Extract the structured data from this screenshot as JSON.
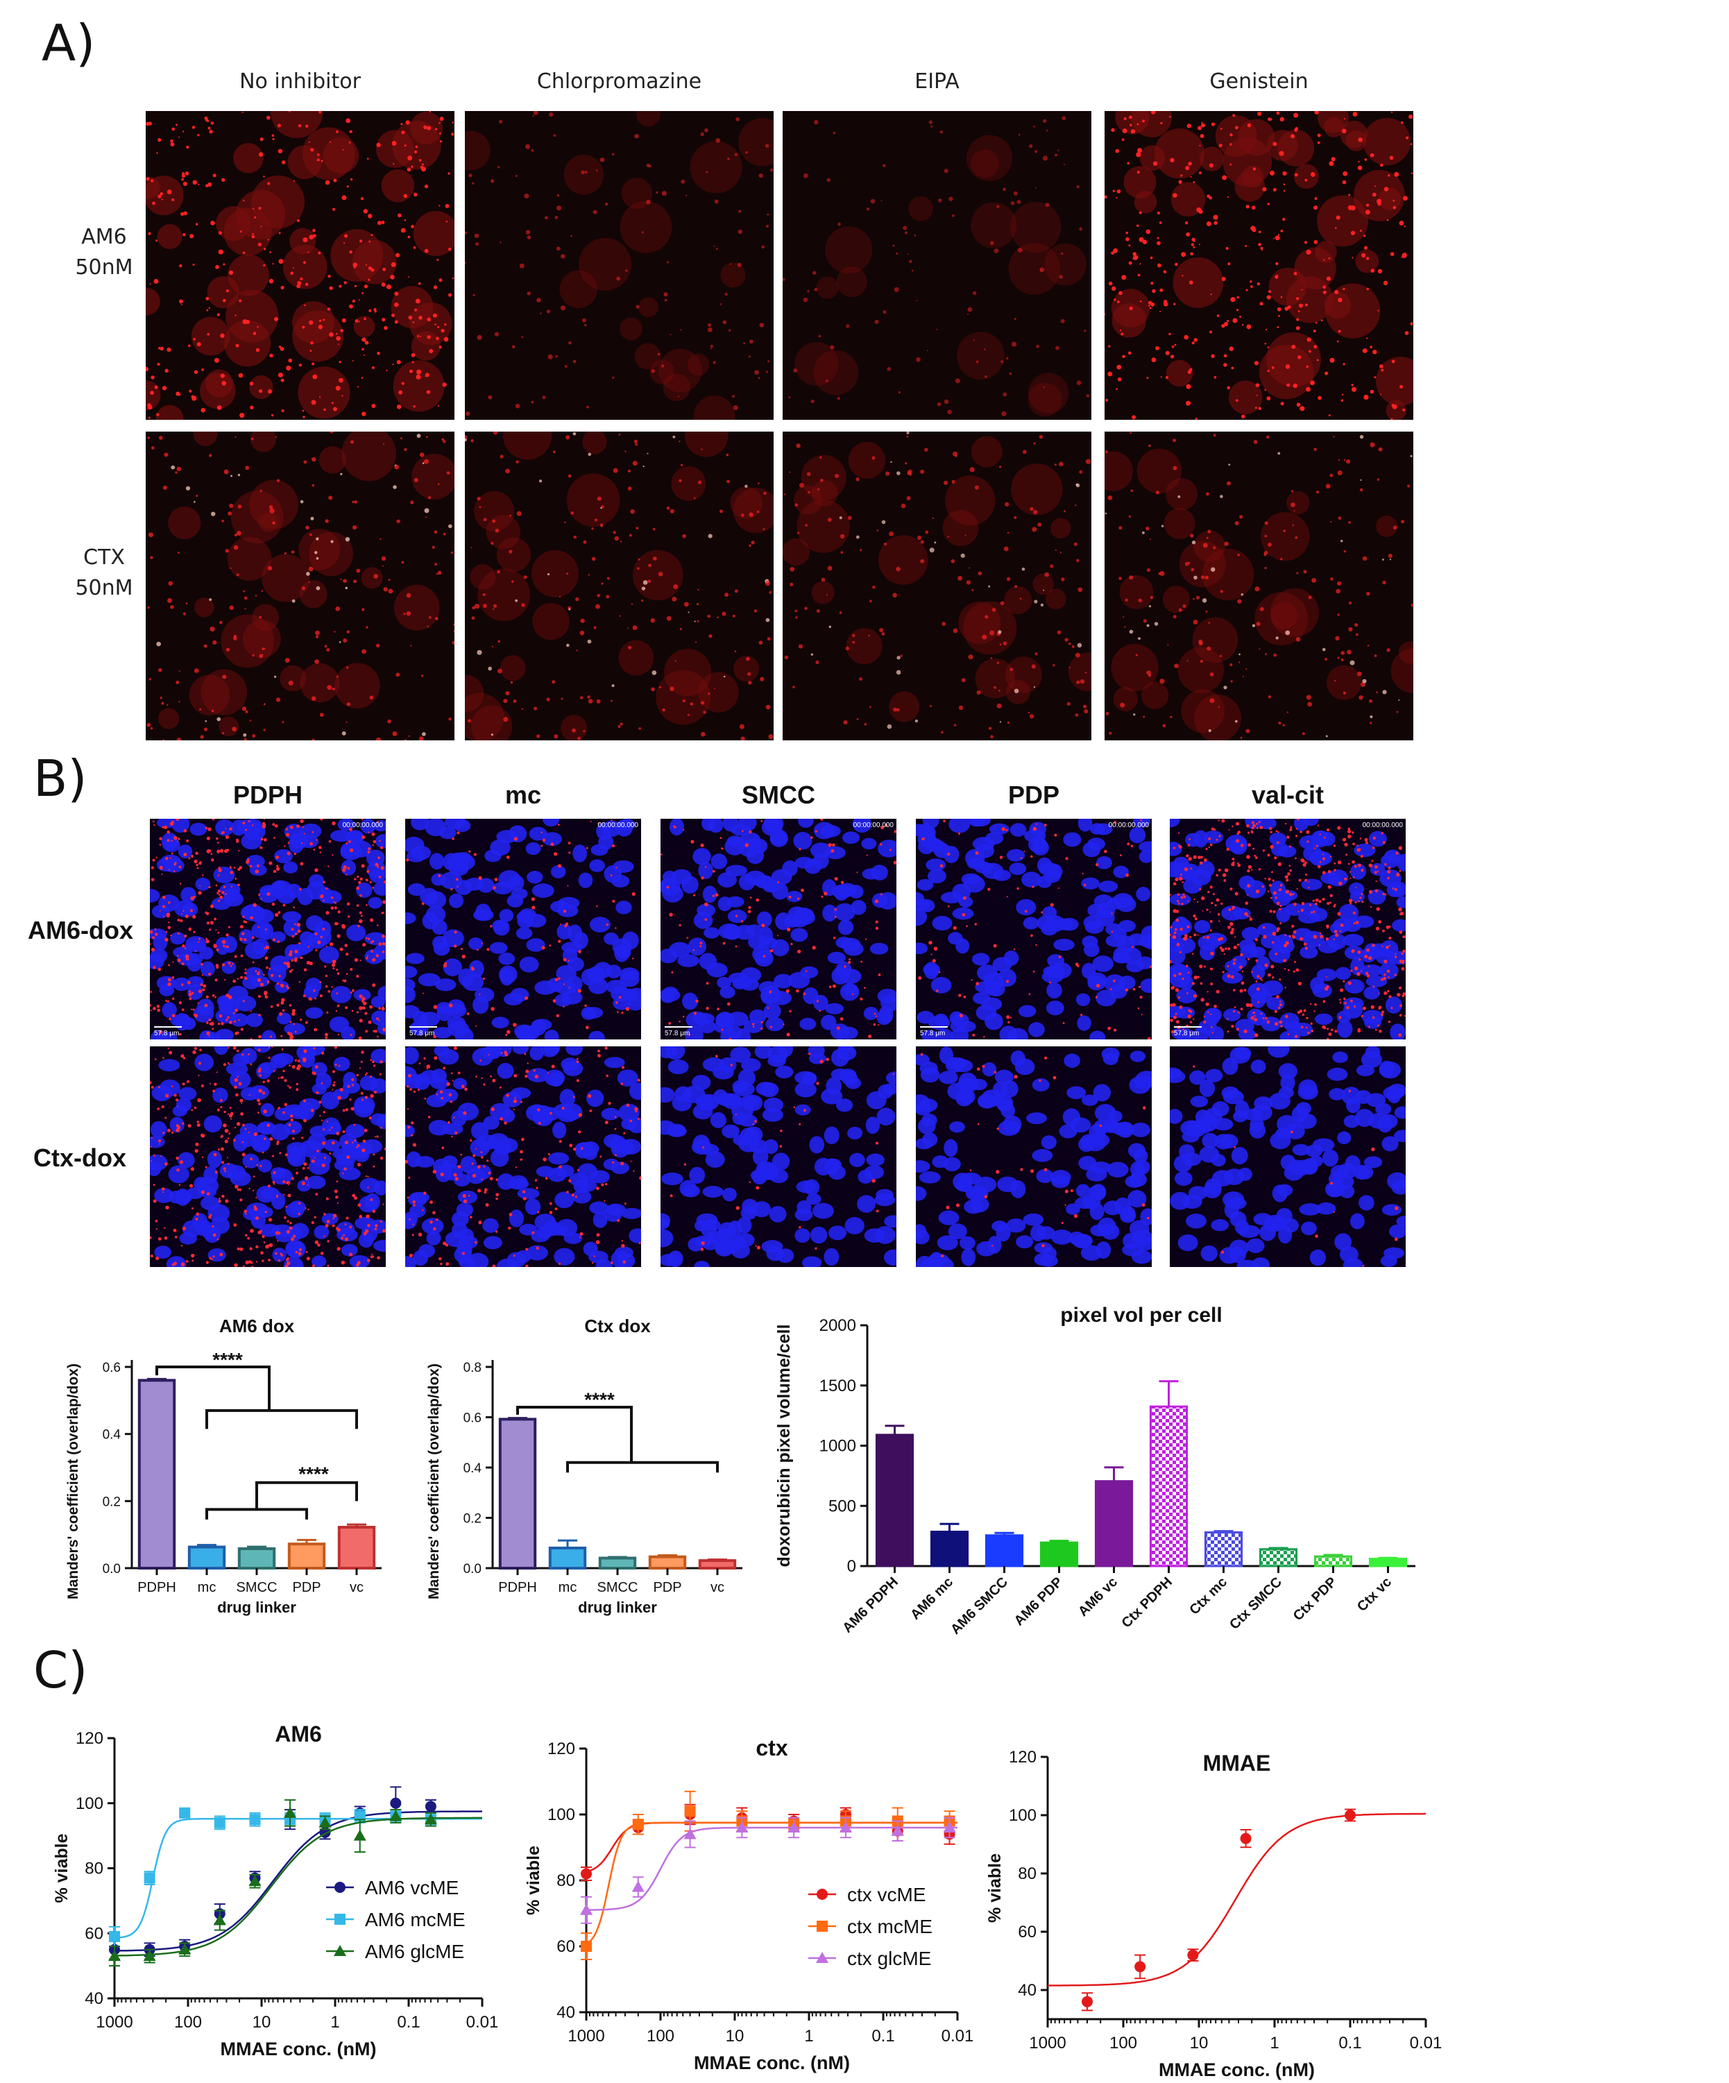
{
  "panels": {
    "a": "A)",
    "b": "B)",
    "c": "C)"
  },
  "panel_a": {
    "columns": [
      "No inhibitor",
      "Chlorpromazine",
      "EIPA",
      "Genistein"
    ],
    "rows": [
      {
        "line1": "AM6",
        "line2": "50nM"
      },
      {
        "line1": "CTX",
        "line2": "50nM"
      }
    ],
    "intensity": [
      [
        1.0,
        0.25,
        0.18,
        1.0
      ],
      [
        0.55,
        0.5,
        0.45,
        0.5
      ]
    ]
  },
  "panel_b": {
    "columns": [
      "PDPH",
      "mc",
      "SMCC",
      "PDP",
      "val-cit"
    ],
    "rows": [
      "AM6-dox",
      "Ctx-dox"
    ],
    "timestamp": "00:00:00.000",
    "scale_bar": "57.8 μm",
    "red_density": [
      [
        0.9,
        0.15,
        0.2,
        0.15,
        0.95
      ],
      [
        0.75,
        0.35,
        0.05,
        0.05,
        0.02
      ]
    ]
  },
  "chart_data": [
    {
      "type": "bar",
      "title": "AM6 dox",
      "xlabel": "drug linker",
      "ylabel": "Manders' coefficient (overlap/dox)",
      "categories": [
        "PDPH",
        "mc",
        "SMCC",
        "PDP",
        "vc"
      ],
      "values": [
        0.56,
        0.063,
        0.058,
        0.072,
        0.122
      ],
      "errors": [
        0.004,
        0.006,
        0.006,
        0.012,
        0.008
      ],
      "ylim": [
        0,
        0.6
      ],
      "yticks": [
        0.0,
        0.2,
        0.4,
        0.6
      ],
      "colors": [
        "#a18cd1",
        "#3aaee8",
        "#5fb6b6",
        "#ff9a60",
        "#f26b6b"
      ],
      "edge_colors": [
        "#2e1e5e",
        "#1e5fa8",
        "#2f6f6f",
        "#c45a1c",
        "#c03030"
      ],
      "significance": [
        "****",
        "****"
      ]
    },
    {
      "type": "bar",
      "title": "Ctx dox",
      "xlabel": "drug linker",
      "ylabel": "Manders' coefficient (overlap/dox)",
      "categories": [
        "PDPH",
        "mc",
        "SMCC",
        "PDP",
        "vc"
      ],
      "values": [
        0.592,
        0.08,
        0.04,
        0.045,
        0.03
      ],
      "errors": [
        0.005,
        0.03,
        0.004,
        0.006,
        0.004
      ],
      "ylim": [
        0,
        0.8
      ],
      "yticks": [
        0.0,
        0.2,
        0.4,
        0.6,
        0.8
      ],
      "colors": [
        "#a18cd1",
        "#3aaee8",
        "#5fb6b6",
        "#ff9a60",
        "#f26b6b"
      ],
      "edge_colors": [
        "#2e1e5e",
        "#1e5fa8",
        "#2f6f6f",
        "#c45a1c",
        "#c03030"
      ],
      "significance": [
        "****"
      ]
    },
    {
      "type": "bar",
      "title": "pixel vol per cell",
      "xlabel": "",
      "ylabel": "doxorubicin pixel volume/cell",
      "categories": [
        "AM6 PDPH",
        "AM6 mc",
        "AM6 SMCC",
        "AM6 PDP",
        "AM6 vc",
        "Ctx PDPH",
        "Ctx mc",
        "Ctx SMCC",
        "Ctx PDP",
        "Ctx vc"
      ],
      "values": [
        1090,
        285,
        255,
        195,
        705,
        1325,
        280,
        140,
        80,
        60
      ],
      "errors": [
        75,
        65,
        20,
        15,
        115,
        210,
        10,
        10,
        12,
        8
      ],
      "ylim": [
        0,
        2000
      ],
      "yticks": [
        0,
        500,
        1000,
        1500,
        2000
      ],
      "colors": [
        "#3f0f5e",
        "#10107a",
        "#1a3cff",
        "#1ec81e",
        "#7a1a9a",
        "#c020e0",
        "#4a4ae0",
        "#1aa050",
        "#3ad03a",
        "#3af03a"
      ],
      "hatched": [
        false,
        false,
        false,
        false,
        false,
        true,
        true,
        true,
        true,
        false
      ]
    },
    {
      "type": "scatter",
      "title": "AM6",
      "xlabel": "MMAE conc. (nM)",
      "ylabel": "% viable",
      "x_ticks": [
        "1000",
        "100",
        "10",
        "1",
        "0.1",
        "0.01"
      ],
      "xlim": [
        1000,
        0.01
      ],
      "x_scale": "log-reversed",
      "ylim": [
        40,
        120
      ],
      "yticks": [
        40,
        60,
        80,
        100,
        120
      ],
      "legend_position": "bottom-right",
      "series": [
        {
          "name": "AM6 vcME",
          "color": "#1a1a80",
          "marker": "circle",
          "x": [
            1000,
            333,
            111,
            37,
            12.3,
            4.1,
            1.37,
            0.46,
            0.15,
            0.05
          ],
          "y": [
            55,
            55,
            56,
            66,
            77,
            95,
            91,
            97,
            100,
            99
          ],
          "err": [
            3,
            2,
            2,
            3,
            2,
            3,
            2,
            2,
            5,
            2
          ],
          "fit": {
            "bottom": 54.5,
            "top": 97.5,
            "ec50": 7,
            "hill": 1.2
          }
        },
        {
          "name": "AM6 mcME",
          "color": "#35b8e8",
          "marker": "square",
          "x": [
            1000,
            333,
            111,
            37,
            12.3,
            4.1,
            1.37,
            0.46,
            0.15,
            0.05
          ],
          "y": [
            59,
            77,
            97,
            94,
            95,
            95,
            95,
            96,
            96,
            95
          ],
          "err": [
            3,
            2,
            1,
            2,
            2,
            2,
            2,
            2,
            2,
            2
          ],
          "fit": {
            "bottom": 58.5,
            "top": 95.2,
            "ec50": 300,
            "hill": 5
          }
        },
        {
          "name": "AM6 glcME",
          "color": "#1a6e1a",
          "marker": "triangle",
          "x": [
            1000,
            333,
            111,
            37,
            12.3,
            4.1,
            1.37,
            0.46,
            0.15,
            0.05
          ],
          "y": [
            53,
            53,
            55,
            64,
            76,
            97,
            94,
            90,
            96,
            95
          ],
          "err": [
            3,
            2,
            2,
            3,
            2,
            4,
            2,
            5,
            2,
            2
          ],
          "fit": {
            "bottom": 53,
            "top": 95.5,
            "ec50": 7.5,
            "hill": 1.2
          }
        }
      ]
    },
    {
      "type": "scatter",
      "title": "ctx",
      "xlabel": "MMAE conc. (nM)",
      "ylabel": "% viable",
      "x_ticks": [
        "1000",
        "100",
        "10",
        "1",
        "0.1",
        "0.01"
      ],
      "xlim": [
        1000,
        0.01
      ],
      "x_scale": "log-reversed",
      "ylim": [
        40,
        120
      ],
      "yticks": [
        40,
        60,
        80,
        100,
        120
      ],
      "legend_position": "bottom-right",
      "series": [
        {
          "name": "ctx vcME",
          "color": "#e41a1a",
          "marker": "circle",
          "x": [
            1000,
            200,
            40,
            8,
            1.6,
            0.32,
            0.064,
            0.0128
          ],
          "y": [
            82,
            96,
            100,
            99,
            98,
            100,
            95,
            94
          ],
          "err": [
            2,
            2,
            3,
            3,
            2,
            2,
            3,
            3
          ],
          "fit": {
            "bottom": 82,
            "top": 97.5,
            "ec50": 450,
            "hill": 4
          }
        },
        {
          "name": "ctx mcME",
          "color": "#ff6a10",
          "marker": "square",
          "x": [
            1000,
            200,
            40,
            8,
            1.6,
            0.32,
            0.064,
            0.0128
          ],
          "y": [
            60,
            97,
            101,
            98,
            97,
            98,
            98,
            98
          ],
          "err": [
            4,
            3,
            6,
            3,
            2,
            3,
            4,
            3
          ],
          "fit": {
            "bottom": 59.5,
            "top": 97.5,
            "ec50": 500,
            "hill": 5
          }
        },
        {
          "name": "ctx glcME",
          "color": "#c070e0",
          "marker": "triangle",
          "x": [
            1000,
            200,
            40,
            8,
            1.6,
            0.32,
            0.064,
            0.0128
          ],
          "y": [
            71,
            78,
            94,
            96,
            96,
            96,
            95,
            96
          ],
          "err": [
            4,
            3,
            4,
            3,
            3,
            3,
            3,
            3
          ],
          "fit": {
            "bottom": 71,
            "top": 96,
            "ec50": 100,
            "hill": 3
          }
        }
      ]
    },
    {
      "type": "scatter",
      "title": "MMAE",
      "xlabel": "MMAE conc. (nM)",
      "ylabel": "% viable",
      "x_ticks": [
        "1000",
        "100",
        "10",
        "1",
        "0.1",
        "0.01"
      ],
      "xlim": [
        1000,
        0.01
      ],
      "x_scale": "log-reversed",
      "ylim": [
        30,
        120
      ],
      "yticks": [
        40,
        60,
        80,
        100,
        120
      ],
      "series": [
        {
          "name": "",
          "color": "#e41a1a",
          "marker": "circle",
          "x": [
            300,
            60,
            12,
            2.4,
            0.1
          ],
          "y": [
            36,
            48,
            52,
            92,
            100
          ],
          "err": [
            3,
            4,
            2,
            3,
            2
          ],
          "fit": {
            "bottom": 41.5,
            "top": 100.5,
            "ec50": 3.3,
            "hill": 1.3
          }
        }
      ]
    }
  ]
}
